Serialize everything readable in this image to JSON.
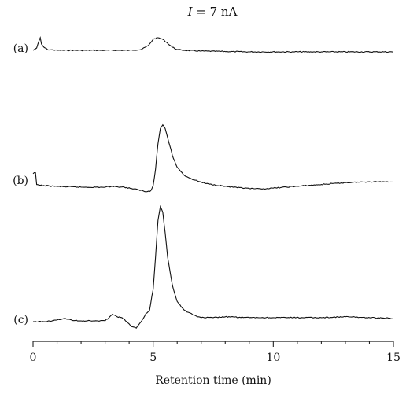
{
  "chart_data": {
    "type": "line",
    "title_var": "I",
    "title_rest": " = 7 nA",
    "xlabel": "Retention time (min)",
    "xlim": [
      0,
      15
    ],
    "xticks": [
      0,
      5,
      10,
      15
    ],
    "xtick_labels": [
      "0",
      "5",
      "10",
      "15"
    ],
    "grid": false,
    "series": [
      {
        "name": "(a)",
        "x": [
          0.0,
          0.15,
          0.3,
          0.35,
          0.45,
          0.6,
          1.0,
          2.0,
          3.0,
          4.0,
          4.5,
          4.8,
          5.0,
          5.2,
          5.4,
          5.6,
          5.8,
          6.0,
          6.3,
          7.0,
          9.0,
          12.0,
          15.0
        ],
        "y": [
          0,
          1.5,
          8,
          4,
          2,
          0.5,
          0,
          0,
          0,
          0,
          0.5,
          3,
          7,
          8,
          7,
          4.5,
          2,
          0.5,
          0,
          -0.5,
          -1,
          -1,
          -1
        ]
      },
      {
        "name": "(b)",
        "x": [
          0.0,
          0.1,
          0.15,
          0.3,
          1.0,
          2.0,
          3.0,
          3.3,
          3.5,
          3.8,
          4.1,
          4.4,
          4.7,
          4.9,
          5.0,
          5.1,
          5.2,
          5.3,
          5.4,
          5.5,
          5.6,
          5.8,
          6.0,
          6.3,
          6.7,
          7.2,
          8.0,
          8.5,
          9.0,
          9.5,
          10.0,
          11.0,
          12.0,
          13.0,
          14.0,
          15.0
        ],
        "y": [
          15,
          16,
          3,
          2,
          0.8,
          0,
          0,
          1,
          0.5,
          0,
          -1.5,
          -3,
          -5,
          -4,
          2,
          20,
          48,
          65,
          69,
          65,
          55,
          35,
          22,
          13,
          8,
          4,
          1,
          -0.5,
          -1.5,
          -2,
          -1,
          1,
          3,
          5,
          6,
          6
        ]
      },
      {
        "name": "(c)",
        "x": [
          0.0,
          0.5,
          1.0,
          1.3,
          1.6,
          2.0,
          2.5,
          3.0,
          3.3,
          3.5,
          3.7,
          3.9,
          4.1,
          4.3,
          4.5,
          4.7,
          4.85,
          5.0,
          5.1,
          5.2,
          5.3,
          5.4,
          5.5,
          5.6,
          5.8,
          6.0,
          6.3,
          6.7,
          7.0,
          7.5,
          8.0,
          9.0,
          10.0,
          12.0,
          13.0,
          15.0
        ],
        "y": [
          0,
          0,
          2,
          4,
          2,
          1,
          1,
          1,
          9,
          6,
          5,
          0,
          -6,
          -8,
          0,
          10,
          14,
          40,
          80,
          125,
          142,
          135,
          110,
          80,
          45,
          25,
          14,
          8,
          5,
          5,
          6,
          5,
          5,
          5,
          6,
          4
        ]
      }
    ]
  }
}
